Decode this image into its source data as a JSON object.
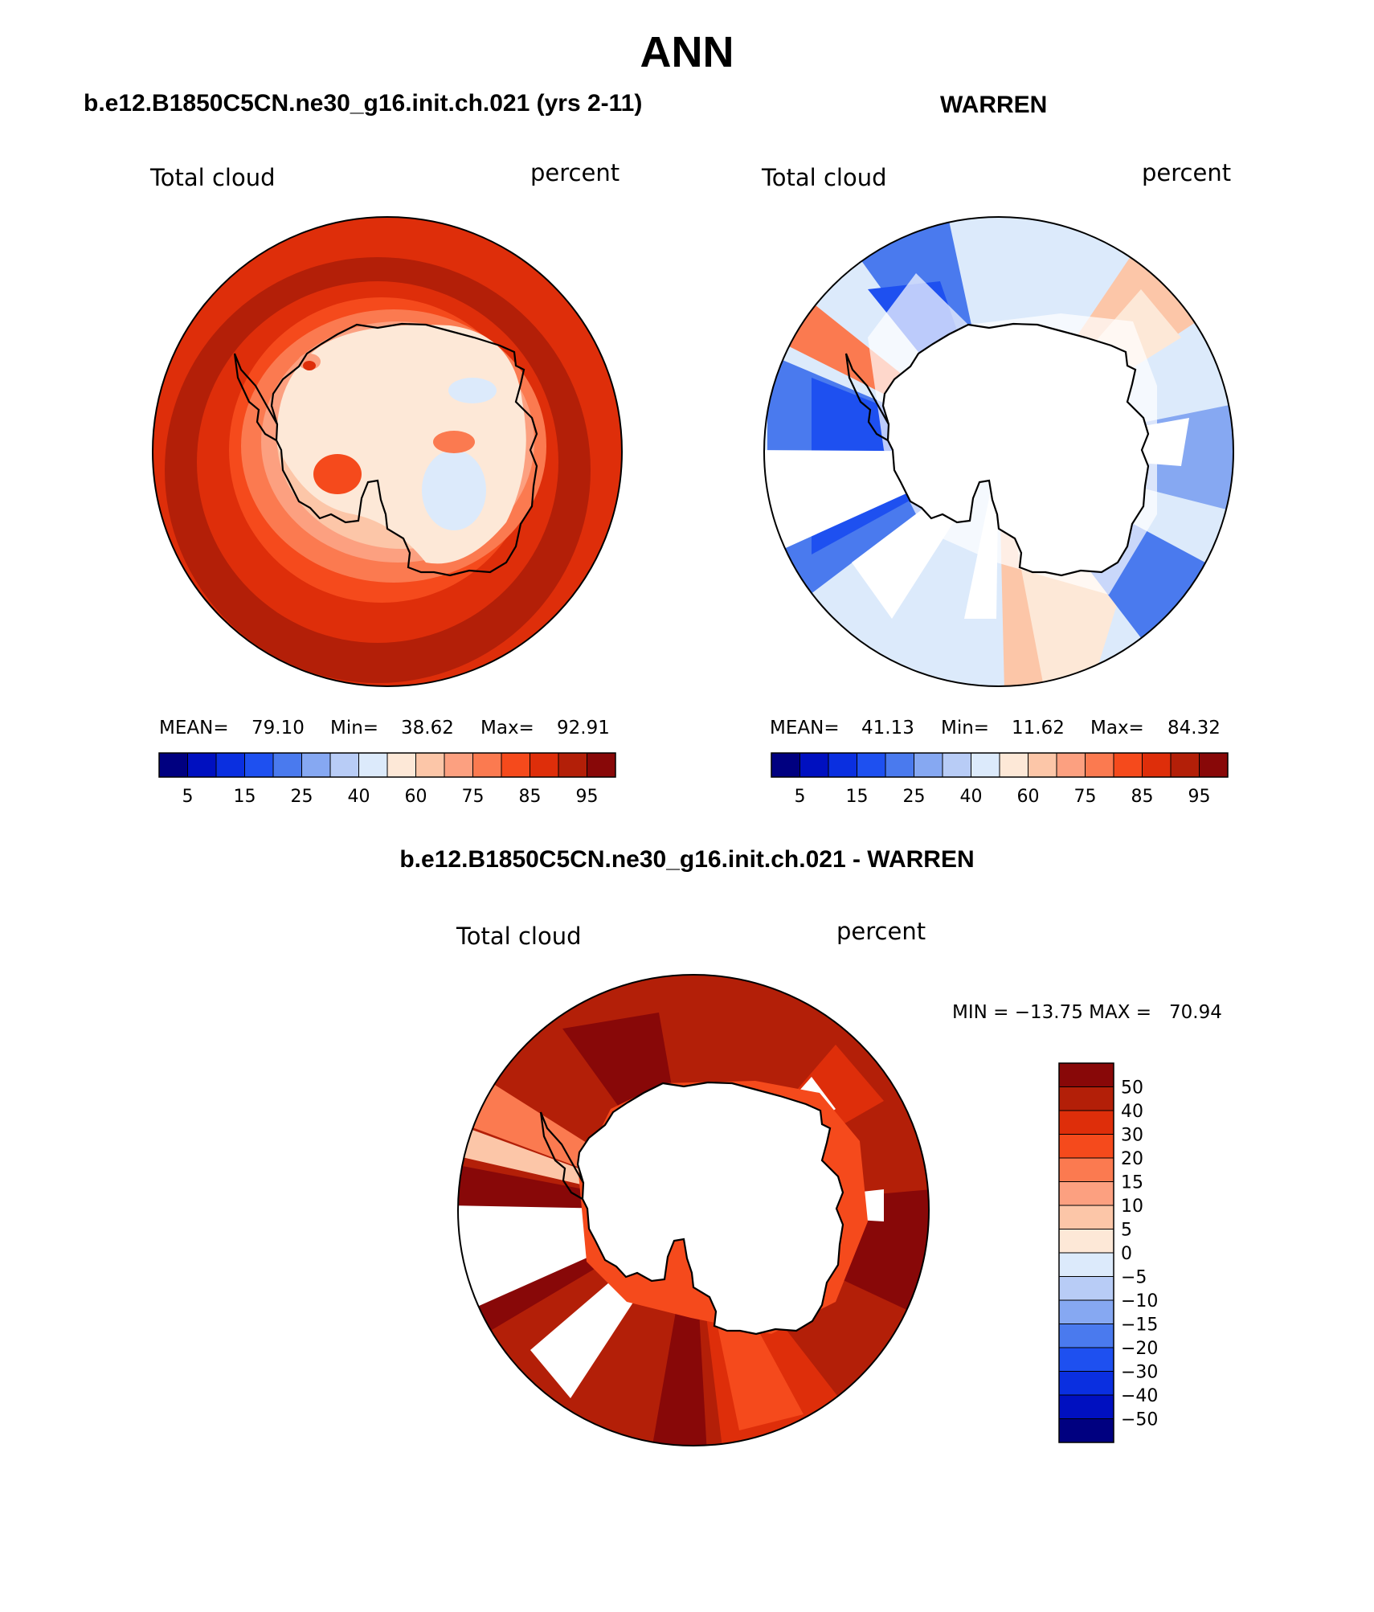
{
  "title": "ANN",
  "panels": {
    "left": {
      "title": "b.e12.B1850C5CN.ne30_g16.init.ch.021 (yrs 2-11)",
      "variable": "Total cloud",
      "units": "percent",
      "stats": {
        "mean_label": "MEAN=",
        "mean": "79.10",
        "min_label": "Min=",
        "min": "38.62",
        "max_label": "Max=",
        "max": "92.91"
      }
    },
    "right": {
      "title": "WARREN",
      "variable": "Total cloud",
      "units": "percent",
      "stats": {
        "mean_label": "MEAN=",
        "mean": "41.13",
        "min_label": "Min=",
        "min": "11.62",
        "max_label": "Max=",
        "max": "84.32"
      }
    },
    "diff": {
      "title": "b.e12.B1850C5CN.ne30_g16.init.ch.021 - WARREN",
      "variable": "Total cloud",
      "units": "percent",
      "minmax": "MIN = −13.75 MAX =   70.94"
    }
  },
  "chart_data": [
    {
      "type": "heatmap",
      "projection": "south-polar-stereographic",
      "title": "b.e12.B1850C5CN.ne30_g16.init.ch.021 (yrs 2-11)",
      "field": "Total cloud",
      "units": "percent",
      "mean": 79.1,
      "min": 38.62,
      "max": 92.91,
      "colorbar_levels": [
        5,
        15,
        25,
        40,
        60,
        75,
        85,
        95
      ],
      "colorbar_tick_labels": [
        "5",
        "15",
        "25",
        "40",
        "60",
        "75",
        "85",
        "95"
      ]
    },
    {
      "type": "heatmap",
      "projection": "south-polar-stereographic",
      "title": "WARREN",
      "field": "Total cloud",
      "units": "percent",
      "mean": 41.13,
      "min": 11.62,
      "max": 84.32,
      "colorbar_levels": [
        5,
        15,
        25,
        40,
        60,
        75,
        85,
        95
      ],
      "colorbar_tick_labels": [
        "5",
        "15",
        "25",
        "40",
        "60",
        "75",
        "85",
        "95"
      ]
    },
    {
      "type": "heatmap",
      "projection": "south-polar-stereographic",
      "title": "b.e12.B1850C5CN.ne30_g16.init.ch.021 - WARREN",
      "field": "Total cloud",
      "units": "percent",
      "min": -13.75,
      "max": 70.94,
      "colorbar_levels": [
        50,
        40,
        30,
        20,
        15,
        10,
        5,
        0,
        -5,
        -10,
        -15,
        -20,
        -30,
        -40,
        -50
      ],
      "colorbar_tick_labels": [
        "50",
        "40",
        "30",
        "20",
        "15",
        "10",
        "5",
        "0",
        "−5",
        "−10",
        "−15",
        "−20",
        "−30",
        "−40",
        "−50"
      ]
    }
  ],
  "colors": {
    "scale_16": [
      "#000080",
      "#0010c0",
      "#0a2fe0",
      "#1e50f0",
      "#4a7aee",
      "#86a8f2",
      "#b8ccf6",
      "#dceafb",
      "#fde8d7",
      "#fcc6a8",
      "#fca080",
      "#fb7a50",
      "#f54a1c",
      "#de2e0a",
      "#b31f08",
      "#880808"
    ],
    "land": "#ffffff"
  }
}
